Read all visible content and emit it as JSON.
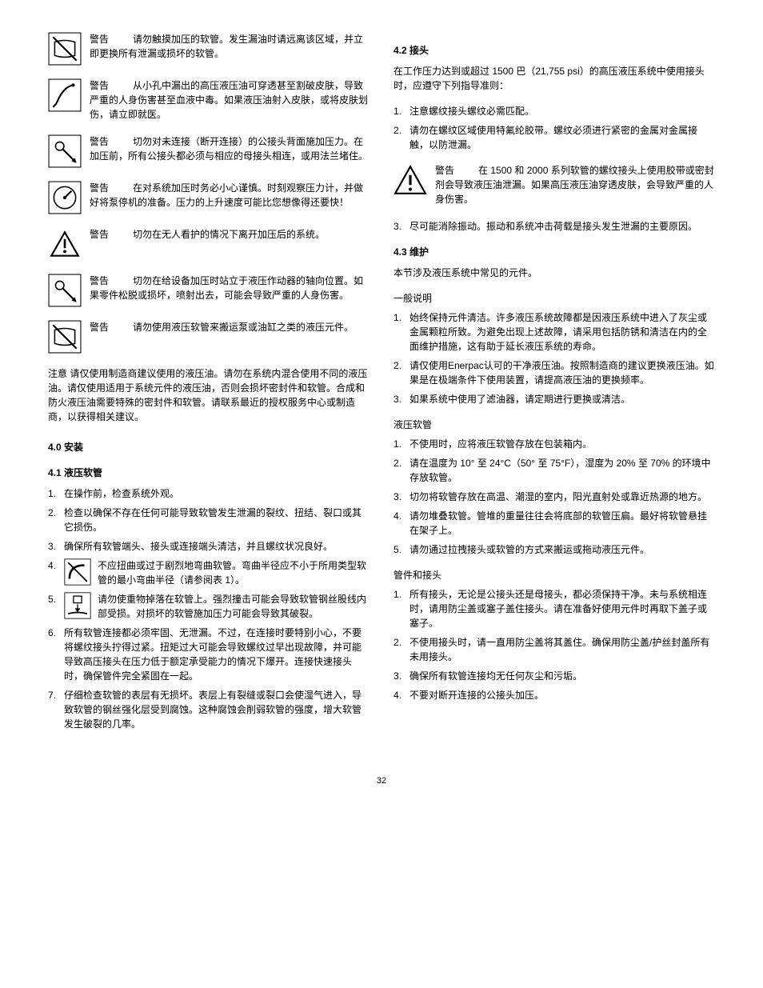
{
  "left": {
    "warnings": [
      {
        "label": "警告",
        "text": "请勿触摸加压的软管。发生漏油时请远离该区域，并立即更换所有泄漏或损坏的软管。",
        "icon": "hose-no-touch"
      },
      {
        "label": "警告",
        "text": "从小孔中漏出的高压液压油可穿透甚至割破皮肤，导致严重的人身伤害甚至血液中毒。如果液压油射入皮肤，或将皮肤划伤，请立即就医。",
        "icon": "skin-injection"
      },
      {
        "label": "警告",
        "text": "切勿对未连接（断开连接）的公接头背面施加压力。在加压前，所有公接头都必须与相应的母接头相连，或用法兰堵住。",
        "icon": "coupler-warn"
      },
      {
        "label": "警告",
        "text": "在对系统加压时务必小心谨慎。时刻观察压力计，并做好将泵停机的准备。压力的上升速度可能比您想像得还要快！",
        "icon": "gauge"
      },
      {
        "label": "警告",
        "text": "切勿在无人看护的情况下离开加压后的系统。",
        "icon": "triangle-excl"
      },
      {
        "label": "警告",
        "text": "切勿在给设备加压时站立于液压作动器的轴向位置。如果零件松脱或损坏，喷射出去，可能会导致严重的人身伤害。",
        "icon": "axial-warn"
      },
      {
        "label": "警告",
        "text": "请勿使用液压软管来搬运泵或油缸之类的液压元件。",
        "icon": "no-carry-hose"
      }
    ],
    "notice_label": "注意",
    "notice_text": "请仅使用制造商建议使用的液压油。请勿在系统内混合使用不同的液压油。请仅使用适用于系统元件的液压油，否则会损坏密封件和软管。合成和防火液压油需要特殊的密封件和软管。请联系最近的授权服务中心或制造商，以获得相关建议。",
    "sec40": "4.0  安装",
    "sec41": "4.1  液压软管",
    "list41": [
      {
        "text": "在操作前，检查系统外观。"
      },
      {
        "text": "检查以确保不存在任何可能导致软管发生泄漏的裂纹、扭结、裂口或其它损伤。"
      },
      {
        "text": "确保所有软管端头、接头或连接端头清洁，并且螺纹状况良好。"
      },
      {
        "text": "不应扭曲或过于剧烈地弯曲软管。弯曲半径应不小于所用类型软管的最小弯曲半径（请参阅表 1）。",
        "icon": "bend-radius"
      },
      {
        "text": "请勿使重物掉落在软管上。强烈撞击可能会导致软管钢丝股线内部受损。对损坏的软管施加压力可能会导致其破裂。",
        "icon": "no-drop"
      },
      {
        "text": "所有软管连接都必须牢固、无泄漏。不过，在连接时要特别小心，不要将螺纹接头拧得过紧。扭矩过大可能会导致螺纹过早出现故障，并可能导致高压接头在压力低于额定承受能力的情况下爆开。连接快速接头时，确保管件完全紧固在一起。"
      },
      {
        "text": "仔细检查软管的表层有无损坏。表层上有裂缝或裂口会使湿气进入，导致软管的钢丝强化层受到腐蚀。这种腐蚀会削弱软管的强度，增大软管发生破裂的几率。"
      }
    ]
  },
  "right": {
    "sec42": "4.2  接头",
    "p42_intro": "在工作压力达到或超过 1500 巴（21,755 psi）的高压液压系统中使用接头时，应遵守下列指导准则：",
    "list42a": [
      "注意螺纹接头螺纹必需匹配。",
      "请勿在螺纹区域使用特氟纶胶带。螺纹必须进行紧密的金属对金属接触，以防泄漏。"
    ],
    "warn42": {
      "label": "警告",
      "text": "在 1500 和 2000 系列软管的螺纹接头上使用胶带或密封剂会导致液压油泄漏。如果高压液压油穿透皮肤，会导致严重的人身伤害。"
    },
    "list42b": [
      "尽可能消除振动。振动和系统冲击荷载是接头发生泄漏的主要原因。"
    ],
    "sec43": "4.3  维护",
    "p43_intro": "本节涉及液压系统中常见的元件。",
    "sub_general": "一般说明",
    "list_general": [
      "始终保持元件清洁。许多液压系统故障都是因液压系统中进入了灰尘或金属颗粒所致。为避免出现上述故障，请采用包括防锈和清洁在内的全面维护措施，这有助于延长液压系统的寿命。",
      "请仅使用Enerpac认可的干净液压油。按照制造商的建议更换液压油。如果是在极端条件下使用装置，请提高液压油的更换频率。",
      "如果系统中使用了滤油器，请定期进行更换或清洁。"
    ],
    "sub_hose": "液压软管",
    "list_hose": [
      "不使用时，应将液压软管存放在包装箱内。",
      "请在温度为 10° 至 24°C（50° 至 75°F），湿度为 20% 至 70% 的环境中存放软管。",
      "切勿将软管存放在高温、潮湿的室内，阳光直射处或靠近热源的地方。",
      "请勿堆叠软管。管堆的重量往往会将底部的软管压扁。最好将软管悬挂在架子上。",
      "请勿通过拉拽接头或软管的方式来搬运或拖动液压元件。"
    ],
    "sub_fittings": "管件和接头",
    "list_fittings": [
      "所有接头，无论是公接头还是母接头，都必须保持干净。未与系统相连时，请用防尘盖或塞子盖住接头。请在准备好使用元件时再取下盖子或塞子。",
      "不使用接头时，请一直用防尘盖将其盖住。确保用防尘盖/护丝封盖所有未用接头。",
      "确保所有软管连接均无任何灰尘和污垢。",
      "不要对断开连接的公接头加压。"
    ]
  },
  "page_number": "32"
}
